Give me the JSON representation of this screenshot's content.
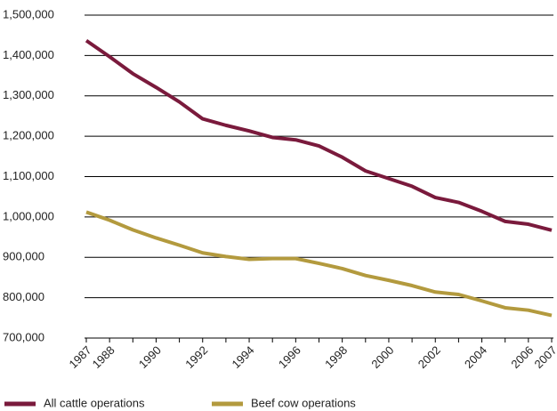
{
  "chart_data": {
    "type": "line",
    "categories": [
      "1987",
      "1988",
      null,
      "1990",
      null,
      "1992",
      null,
      "1994",
      null,
      "1996",
      null,
      "1998",
      null,
      "2000",
      null,
      "2002",
      null,
      "2004",
      null,
      "2006",
      "2007"
    ],
    "series": [
      {
        "name": "All cattle operations",
        "color": "#7a1a3c",
        "values": [
          1437000,
          1397000,
          1355000,
          1321000,
          1285000,
          1243000,
          1227000,
          1213000,
          1197000,
          1191000,
          1176000,
          1148000,
          1114000,
          1095000,
          1076000,
          1048000,
          1036000,
          1014000,
          989000,
          982000,
          967000
        ]
      },
      {
        "name": "Beef cow operations",
        "color": "#b39a3e",
        "values": [
          1012000,
          992000,
          968000,
          948000,
          930000,
          911000,
          902000,
          895000,
          897000,
          897000,
          885000,
          872000,
          855000,
          843000,
          830000,
          814000,
          808000,
          792000,
          775000,
          769000,
          756000
        ]
      }
    ],
    "ylim": [
      700000,
      1500000
    ],
    "yticks": [
      {
        "value": 700000,
        "label": "700,000"
      },
      {
        "value": 800000,
        "label": "800,000"
      },
      {
        "value": 900000,
        "label": "900,000"
      },
      {
        "value": 1000000,
        "label": "1,000,000"
      },
      {
        "value": 1100000,
        "label": "1,100,000"
      },
      {
        "value": 1200000,
        "label": "1,200,000"
      },
      {
        "value": 1300000,
        "label": "1,300,000"
      },
      {
        "value": 1400000,
        "label": "1,400,000"
      },
      {
        "value": 1500000,
        "label": "1,500,000"
      }
    ],
    "grid": true,
    "legend": "bottom"
  }
}
